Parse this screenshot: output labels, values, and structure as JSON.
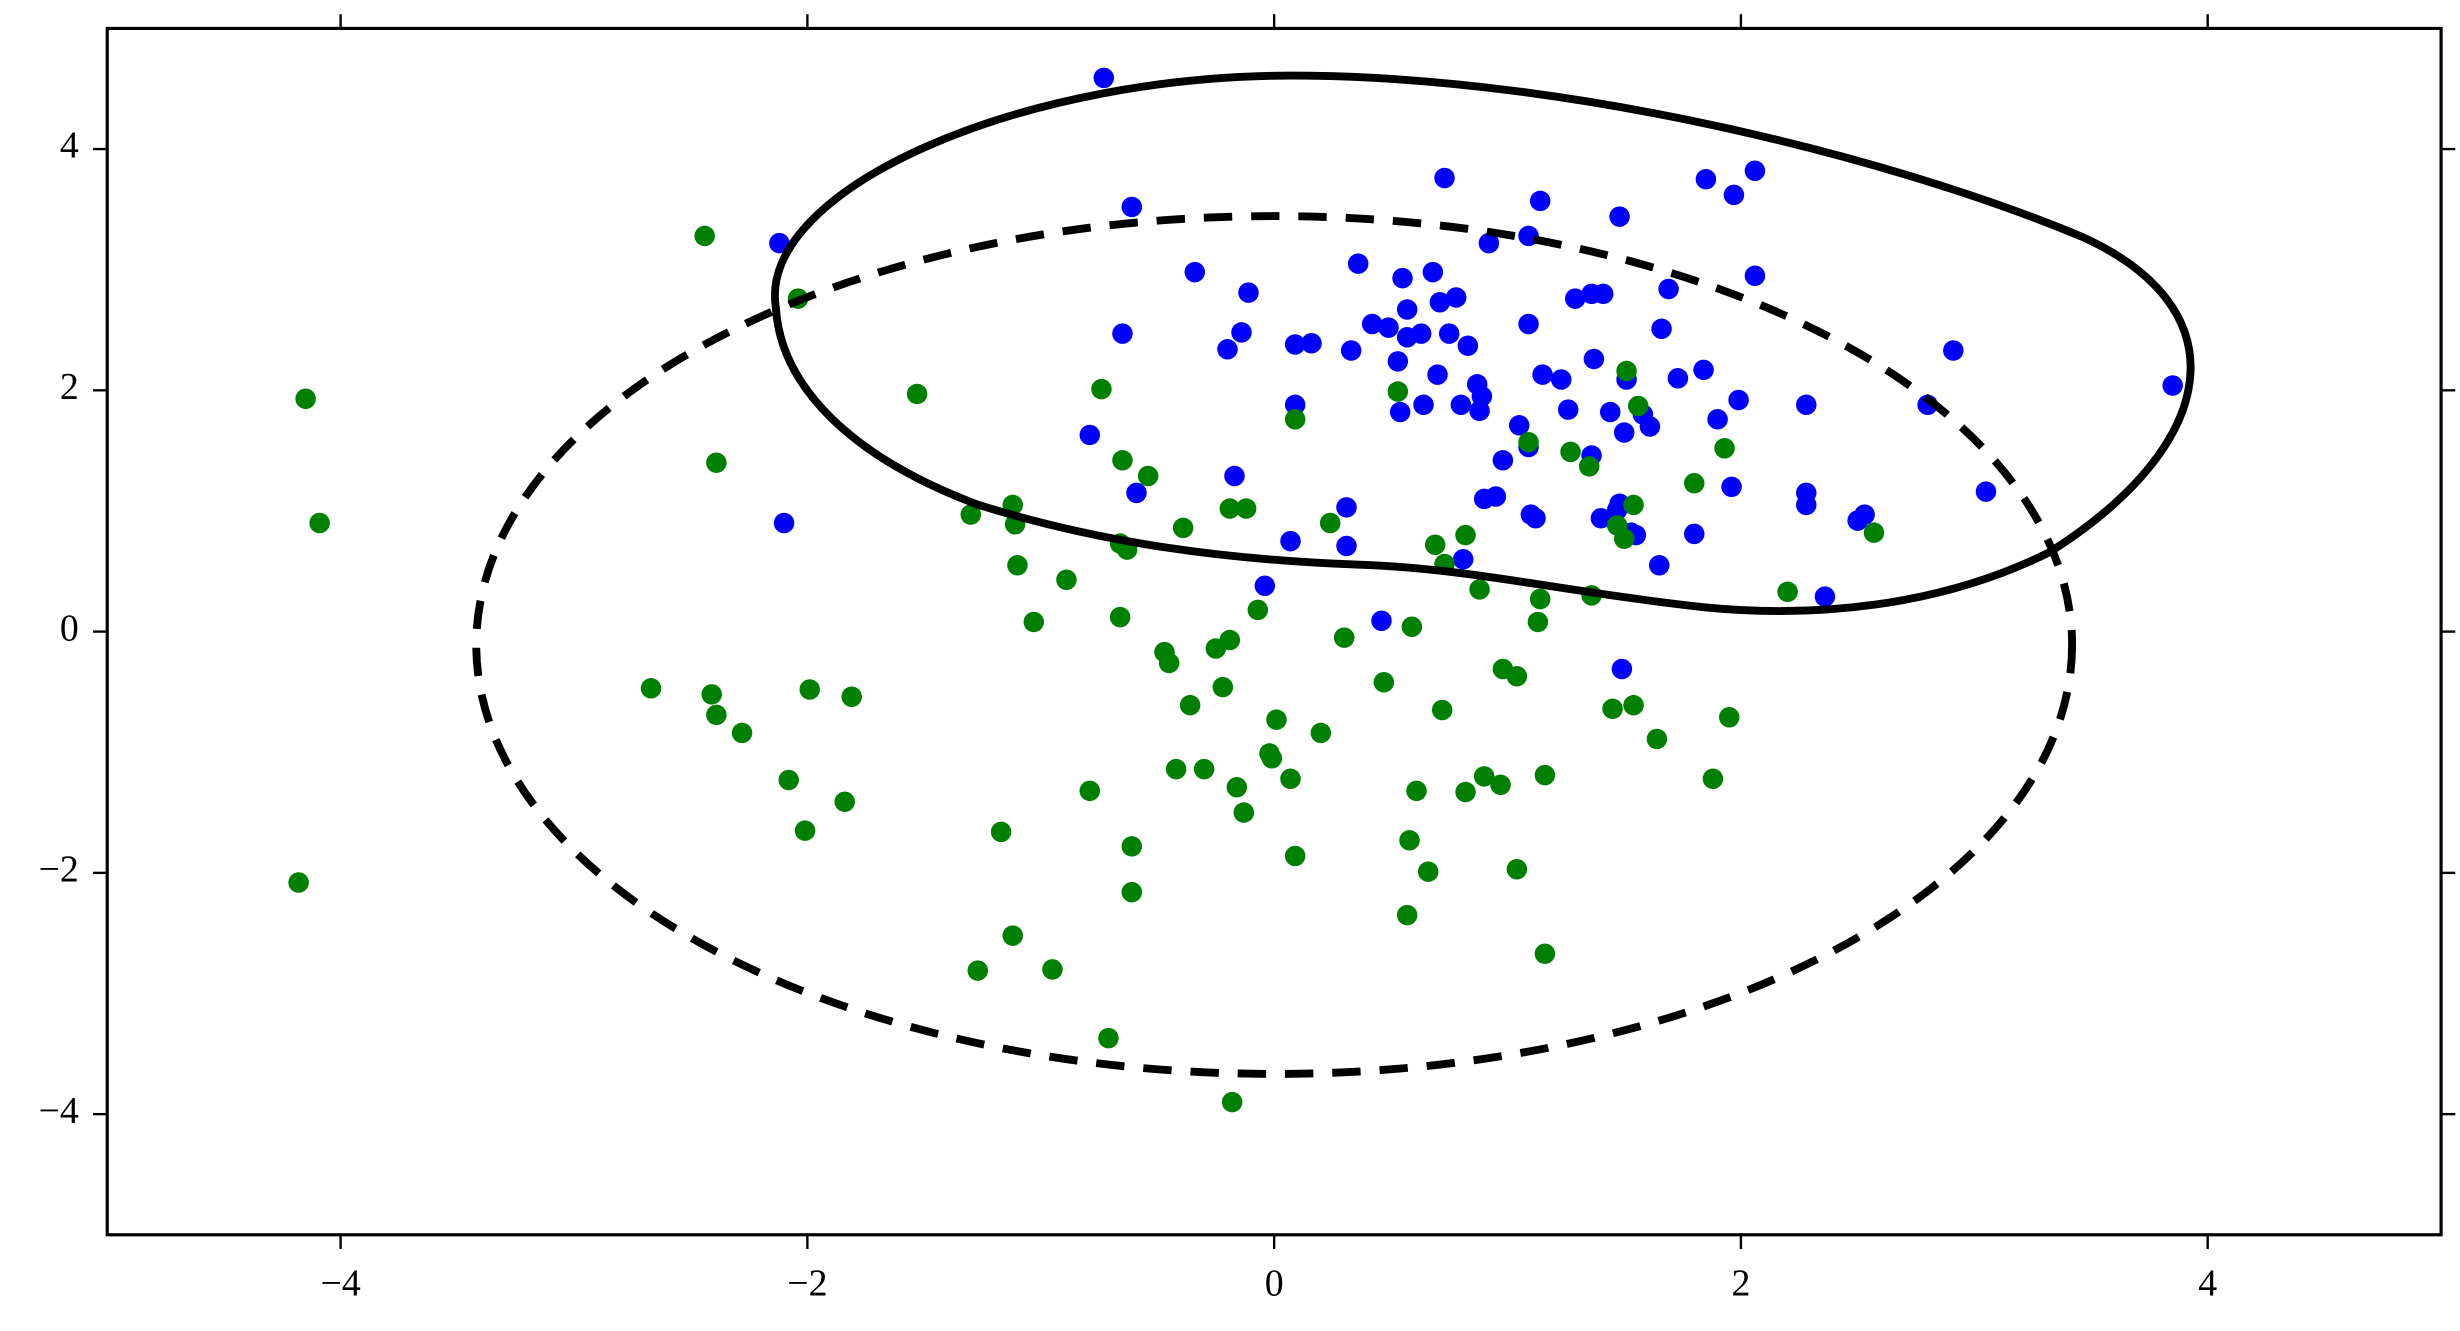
{
  "chart_data": {
    "type": "scatter",
    "xlim": [
      -5,
      5
    ],
    "ylim": [
      -5,
      5
    ],
    "xticks": [
      {
        "value": -4,
        "label": "−4"
      },
      {
        "value": -2,
        "label": "−2"
      },
      0,
      2,
      4
    ],
    "yticks": [
      {
        "value": -4,
        "label": "−4"
      },
      {
        "value": -2,
        "label": "−2"
      },
      0,
      2,
      4
    ],
    "series": [
      {
        "color": "#0000ff",
        "x": [
          -0.73,
          -2.12,
          -0.61,
          -0.34,
          -0.11,
          0.73,
          1.14,
          1.48,
          1.85,
          1.97,
          2.06,
          2.06,
          1.69,
          1.36,
          1.41,
          1.29,
          1.09,
          0.92,
          0.68,
          0.55,
          0.36,
          0.78,
          0.71,
          0.57,
          0.42,
          0.49,
          0.57,
          0.63,
          0.75,
          0.83,
          1.09,
          1.66,
          -0.65,
          -0.14,
          -0.2,
          0.09,
          0.16,
          0.33,
          0.53,
          0.7,
          0.87,
          0.89,
          0.8,
          0.88,
          0.64,
          0.54,
          1.15,
          1.23,
          1.37,
          1.51,
          1.73,
          1.84,
          1.99,
          1.9,
          2.28,
          2.91,
          2.8,
          3.85,
          3.05,
          1.26,
          1.44,
          1.58,
          1.61,
          1.5,
          1.05,
          0.98,
          1.09,
          1.36,
          -0.79,
          0.09,
          -0.17,
          -0.59,
          0.31,
          0.07,
          0.31,
          -0.04,
          -2.1,
          0.9,
          0.95,
          1.1,
          1.12,
          1.4,
          1.48,
          1.47,
          1.53,
          1.55,
          1.65,
          1.8,
          1.96,
          2.28,
          2.28,
          2.5,
          2.53,
          0.81,
          0.46,
          1.49,
          2.36
        ],
        "values": [
          4.59,
          3.22,
          3.52,
          2.98,
          2.81,
          3.76,
          3.57,
          3.44,
          3.75,
          3.62,
          3.82,
          2.95,
          2.84,
          2.8,
          2.8,
          2.76,
          3.28,
          3.22,
          2.98,
          2.93,
          3.05,
          2.77,
          2.73,
          2.67,
          2.55,
          2.52,
          2.44,
          2.47,
          2.47,
          2.37,
          2.55,
          2.51,
          2.47,
          2.48,
          2.34,
          2.38,
          2.39,
          2.33,
          2.24,
          2.13,
          2.05,
          1.95,
          1.88,
          1.83,
          1.88,
          1.82,
          2.13,
          2.09,
          2.26,
          2.09,
          2.1,
          2.17,
          1.92,
          1.76,
          1.88,
          2.33,
          1.88,
          2.04,
          1.16,
          1.84,
          1.82,
          1.8,
          1.7,
          1.65,
          1.71,
          1.42,
          1.53,
          1.46,
          1.63,
          1.88,
          1.29,
          1.15,
          1.03,
          0.75,
          0.71,
          0.38,
          0.9,
          1.1,
          1.12,
          0.97,
          0.94,
          0.94,
          1.06,
          1.01,
          0.82,
          0.8,
          0.55,
          0.81,
          1.2,
          1.15,
          1.05,
          0.92,
          0.97,
          0.6,
          0.09,
          -0.31,
          0.29
        ]
      },
      {
        "color": "#008000",
        "x": [
          -2.44,
          -2.04,
          -4.15,
          -4.09,
          -2.39,
          -1.53,
          -0.74,
          0.09,
          0.53,
          1.51,
          1.56,
          -0.65,
          -0.54,
          -1.3,
          -1.12,
          -1.11,
          -0.39,
          -0.19,
          -0.12,
          0.24,
          -0.63,
          -0.66,
          -1.1,
          -0.89,
          -0.66,
          -1.03,
          -0.07,
          0.3,
          0.59,
          0.88,
          0.73,
          0.69,
          0.82,
          1.14,
          1.36,
          1.09,
          1.27,
          1.35,
          1.93,
          1.8,
          1.54,
          1.47,
          1.5,
          2.57,
          2.2,
          1.13,
          -2.67,
          -2.41,
          -2.39,
          -2.28,
          -1.99,
          -1.81,
          -2.08,
          -2.01,
          -1.84,
          -0.47,
          -0.45,
          -0.25,
          -0.19,
          -0.36,
          -0.22,
          0.01,
          0.2,
          0.47,
          0.98,
          1.04,
          1.45,
          1.54,
          1.64,
          1.95,
          0.72,
          -0.02,
          -0.01,
          -0.42,
          -0.3,
          -0.16,
          0.07,
          -0.79,
          -0.13,
          0.09,
          0.9,
          0.97,
          1.16,
          0.61,
          0.82,
          -1.17,
          -0.61,
          -0.61,
          0.58,
          0.66,
          1.04,
          0.57,
          -1.12,
          -1.27,
          -0.95,
          1.16,
          -0.71,
          -0.18,
          -4.18,
          1.88
        ],
        "values": [
          3.28,
          2.76,
          1.93,
          0.9,
          1.4,
          1.97,
          2.01,
          1.76,
          1.99,
          2.16,
          1.87,
          1.42,
          1.29,
          0.97,
          1.05,
          0.89,
          0.86,
          1.02,
          1.02,
          0.9,
          0.68,
          0.73,
          0.55,
          0.43,
          0.12,
          0.08,
          0.18,
          -0.05,
          0.04,
          0.35,
          0.56,
          0.72,
          0.8,
          0.27,
          0.3,
          1.57,
          1.49,
          1.37,
          1.52,
          1.23,
          1.05,
          0.88,
          0.77,
          0.82,
          0.33,
          0.08,
          -0.47,
          -0.52,
          -0.69,
          -0.84,
          -0.48,
          -0.54,
          -1.23,
          -1.65,
          -1.41,
          -0.17,
          -0.26,
          -0.14,
          -0.07,
          -0.61,
          -0.46,
          -0.73,
          -0.84,
          -0.42,
          -0.31,
          -0.37,
          -0.64,
          -0.61,
          -0.89,
          -0.71,
          -0.65,
          -1.01,
          -1.05,
          -1.14,
          -1.14,
          -1.29,
          -1.22,
          -1.32,
          -1.5,
          -1.86,
          -1.2,
          -1.27,
          -1.19,
          -1.32,
          -1.33,
          -1.66,
          -1.78,
          -2.16,
          -1.73,
          -1.99,
          -1.97,
          -2.35,
          -2.52,
          -2.81,
          -2.8,
          -2.67,
          -3.37,
          -3.9,
          -2.08,
          -1.22
        ]
      }
    ]
  }
}
